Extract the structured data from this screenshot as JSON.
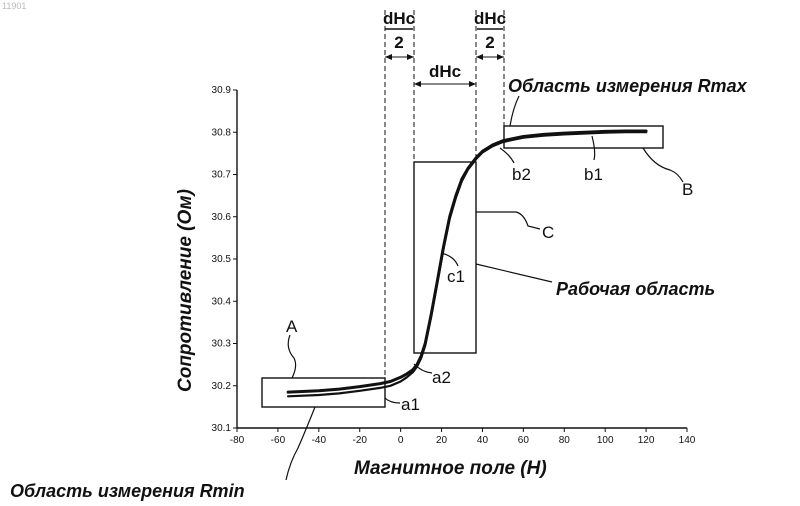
{
  "watermark": "11901",
  "chart_data": {
    "type": "line",
    "xlabel": "Магнитное поле (Н)",
    "ylabel": "Сопротивление (Ом)",
    "xlim": [
      -80,
      140
    ],
    "ylim": [
      30.1,
      30.9
    ],
    "x_ticks": [
      -80,
      -60,
      -40,
      -20,
      0,
      20,
      40,
      60,
      80,
      100,
      120,
      140
    ],
    "y_ticks": [
      30.1,
      30.2,
      30.3,
      30.4,
      30.5,
      30.6,
      30.7,
      30.8,
      30.9
    ],
    "grid": false,
    "series": [
      {
        "x": [
          -55,
          -40,
          -30,
          -20,
          -10,
          -5,
          0,
          3,
          6,
          8,
          10,
          12,
          15,
          18,
          21,
          24,
          27,
          30,
          33,
          37,
          40,
          45,
          50,
          60,
          70,
          80,
          90,
          100,
          110,
          120
        ],
        "y": [
          30.185,
          30.188,
          30.192,
          30.198,
          30.205,
          30.21,
          30.22,
          30.228,
          30.238,
          30.25,
          30.27,
          30.3,
          30.37,
          30.45,
          30.53,
          30.6,
          30.65,
          30.69,
          30.715,
          30.74,
          30.755,
          30.77,
          30.78,
          30.79,
          30.795,
          30.798,
          30.8,
          30.802,
          30.803,
          30.803
        ]
      },
      {
        "x": [
          -55,
          -40,
          -30,
          -20,
          -10,
          -5,
          0,
          3,
          6,
          8,
          10,
          12,
          15,
          18,
          21,
          24,
          27,
          30,
          33,
          37,
          40,
          45,
          50,
          60,
          70,
          80,
          90,
          100,
          110,
          120
        ],
        "y": [
          30.175,
          30.178,
          30.182,
          30.188,
          30.195,
          30.2,
          30.21,
          30.22,
          30.232,
          30.245,
          30.265,
          30.295,
          30.365,
          30.445,
          30.525,
          30.595,
          30.645,
          30.685,
          30.712,
          30.737,
          30.752,
          30.767,
          30.777,
          30.787,
          30.792,
          30.795,
          30.797,
          30.799,
          30.8,
          30.8
        ]
      }
    ],
    "annotations": {
      "dim_half_top": "dHc",
      "dim_half_bottom": "2",
      "dim_full": "dHc",
      "region_rmax": "Область измерения Rmax",
      "region_rmin": "Область измерения Rmin",
      "region_work": "Рабочая область",
      "label_A": "A",
      "label_B": "B",
      "label_C": "C",
      "label_a1": "a1",
      "label_a2": "a2",
      "label_b1": "b1",
      "label_b2": "b2",
      "label_c1": "c1"
    }
  }
}
